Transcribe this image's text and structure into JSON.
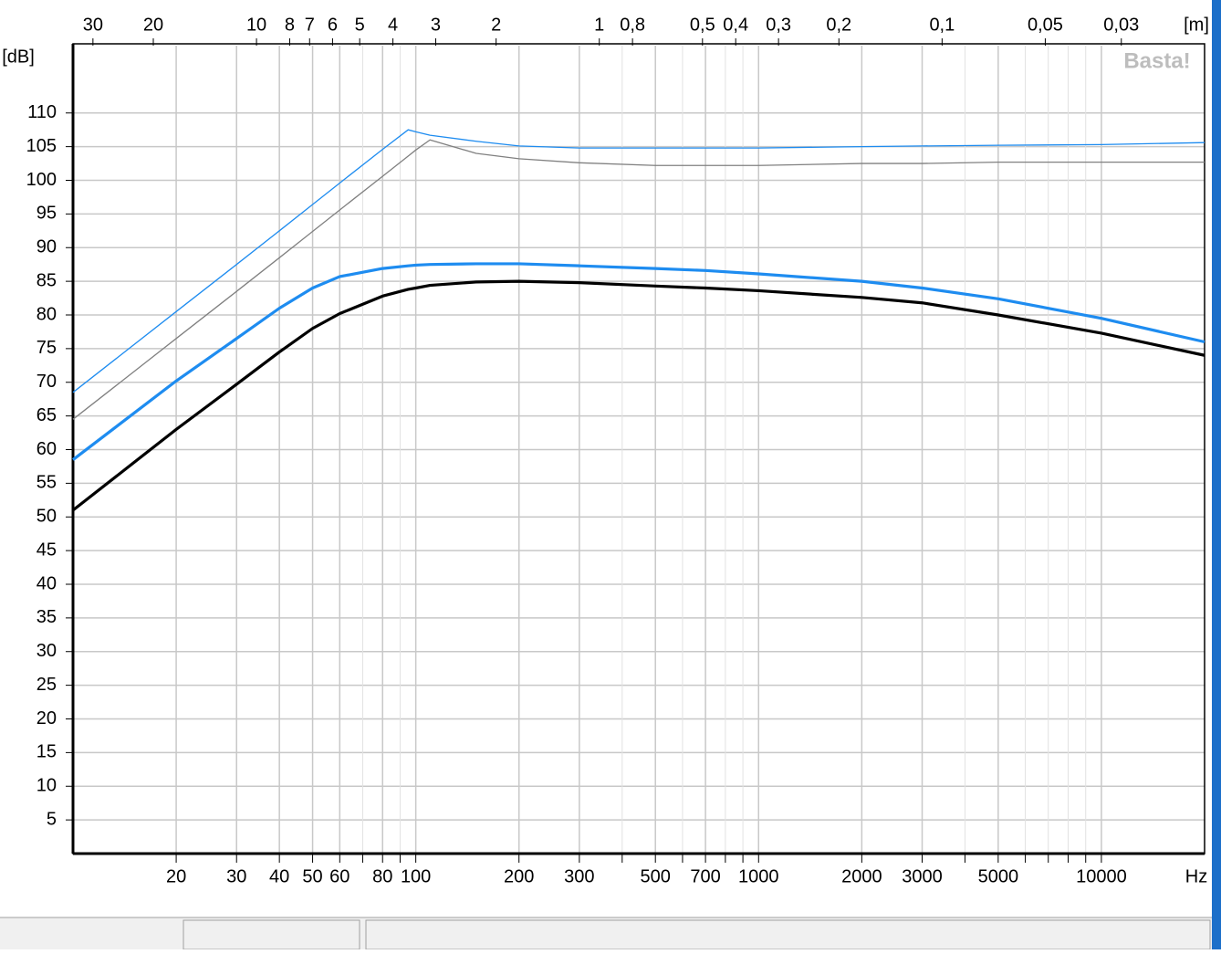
{
  "chart_data": {
    "type": "line",
    "y_label": "[dB]",
    "x_label": "Hz",
    "x2_label": "[m]",
    "watermark": "Basta!",
    "x": [
      10,
      20,
      30,
      40,
      50,
      60,
      80,
      95,
      100,
      110,
      150,
      200,
      300,
      500,
      700,
      1000,
      2000,
      3000,
      5000,
      10000,
      20000
    ],
    "series": [
      {
        "color": "#1e8cf0",
        "line_width": 1.3,
        "values": [
          68.5,
          80.5,
          87.5,
          92.5,
          96.4,
          99.6,
          104.6,
          107.5,
          107.2,
          106.7,
          105.8,
          105.1,
          104.8,
          104.8,
          104.8,
          104.8,
          105,
          105.1,
          105.2,
          105.3,
          105.6
        ]
      },
      {
        "color": "#808080",
        "line_width": 1.3,
        "values": [
          64.5,
          76.5,
          83.5,
          88.5,
          92.4,
          95.6,
          100.6,
          103.6,
          104.5,
          106,
          104,
          103.2,
          102.6,
          102.2,
          102.2,
          102.2,
          102.5,
          102.5,
          102.7,
          102.7,
          102.7
        ]
      },
      {
        "color": "#1e8cf0",
        "line_width": 3.2,
        "values": [
          58.5,
          70.2,
          76.5,
          81,
          84,
          85.7,
          86.9,
          87.3,
          87.4,
          87.5,
          87.6,
          87.6,
          87.3,
          86.9,
          86.6,
          86.1,
          85,
          84,
          82.4,
          79.5,
          76
        ]
      },
      {
        "color": "#000000",
        "line_width": 3.2,
        "values": [
          51,
          63,
          69.7,
          74.5,
          78,
          80.2,
          82.8,
          83.8,
          84,
          84.4,
          84.9,
          85,
          84.8,
          84.3,
          84,
          83.6,
          82.6,
          81.8,
          80,
          77.3,
          74
        ]
      }
    ],
    "xlog": true,
    "xlim": [
      10,
      20000
    ],
    "xticks": [
      20,
      30,
      40,
      50,
      60,
      80,
      100,
      200,
      300,
      500,
      700,
      1000,
      2000,
      3000,
      5000,
      10000
    ],
    "xminorticks": [
      70,
      90,
      400,
      600,
      800,
      900,
      4000,
      6000,
      7000,
      8000,
      9000
    ],
    "x2log": true,
    "x2lim": [
      34.3,
      0.01715
    ],
    "x2ticks": [
      30,
      20,
      10,
      8,
      7,
      6,
      5,
      4,
      3,
      2,
      1,
      {
        "value": 0.8,
        "label": "0,8"
      },
      {
        "value": 0.5,
        "label": "0,5"
      },
      {
        "value": 0.4,
        "label": "0,4"
      },
      {
        "value": 0.3,
        "label": "0,3"
      },
      {
        "value": 0.2,
        "label": "0,2"
      },
      {
        "value": 0.1,
        "label": "0,1"
      },
      {
        "value": 0.05,
        "label": "0,05"
      },
      {
        "value": 0.03,
        "label": "0,03"
      }
    ],
    "ylim": [
      0,
      120
    ],
    "yticks": [
      5,
      10,
      15,
      20,
      25,
      30,
      35,
      40,
      45,
      50,
      55,
      60,
      65,
      70,
      75,
      80,
      85,
      90,
      95,
      100,
      105,
      110
    ],
    "grid": true
  }
}
